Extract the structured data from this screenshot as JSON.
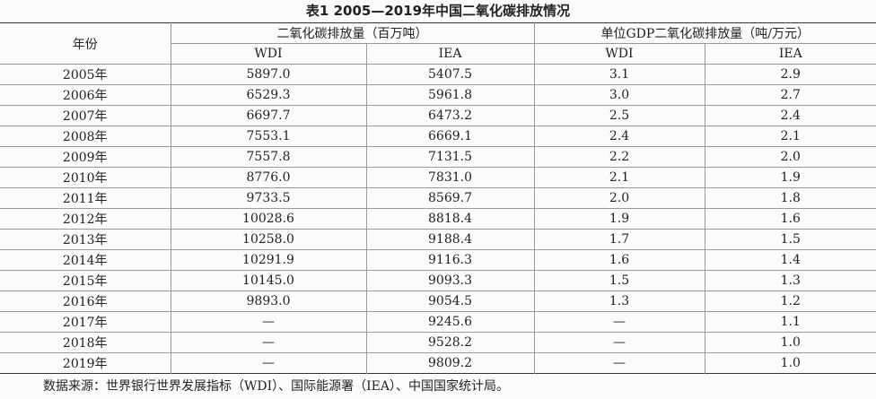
{
  "title": "表1 2005—2019年中国二氧化碳排放情况",
  "table": {
    "header": {
      "year": "年份",
      "group1": "二氧化碳排放量（百万吨）",
      "group2": "单位GDP二氧化碳排放量（吨/万元）",
      "sub": [
        "WDI",
        "IEA",
        "WDI",
        "IEA"
      ]
    },
    "rows": [
      [
        "2005年",
        "5897.0",
        "5407.5",
        "3.1",
        "2.9"
      ],
      [
        "2006年",
        "6529.3",
        "5961.8",
        "3.0",
        "2.7"
      ],
      [
        "2007年",
        "6697.7",
        "6473.2",
        "2.5",
        "2.4"
      ],
      [
        "2008年",
        "7553.1",
        "6669.1",
        "2.4",
        "2.1"
      ],
      [
        "2009年",
        "7557.8",
        "7131.5",
        "2.2",
        "2.0"
      ],
      [
        "2010年",
        "8776.0",
        "7831.0",
        "2.1",
        "1.9"
      ],
      [
        "2011年",
        "9733.5",
        "8569.7",
        "2.0",
        "1.8"
      ],
      [
        "2012年",
        "10028.6",
        "8818.4",
        "1.9",
        "1.6"
      ],
      [
        "2013年",
        "10258.0",
        "9188.4",
        "1.7",
        "1.5"
      ],
      [
        "2014年",
        "10291.9",
        "9116.3",
        "1.6",
        "1.4"
      ],
      [
        "2015年",
        "10145.0",
        "9093.3",
        "1.5",
        "1.3"
      ],
      [
        "2016年",
        "9893.0",
        "9054.5",
        "1.3",
        "1.2"
      ],
      [
        "2017年",
        "—",
        "9245.6",
        "—",
        "1.1"
      ],
      [
        "2018年",
        "—",
        "9528.2",
        "—",
        "1.0"
      ],
      [
        "2019年",
        "—",
        "9809.2",
        "—",
        "1.0"
      ]
    ]
  },
  "source": "数据来源：世界银行世界发展指标（WDI）、国际能源署（IEA）、中国国家统计局。"
}
